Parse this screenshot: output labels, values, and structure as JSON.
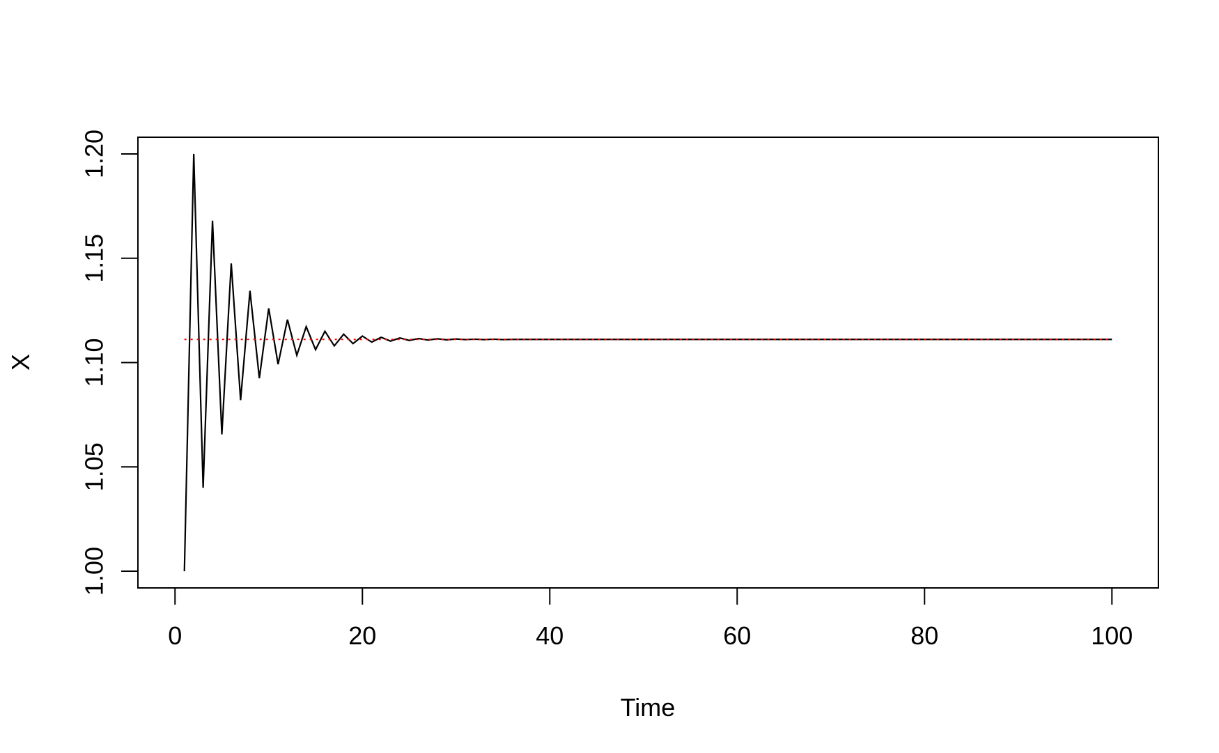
{
  "chart_data": {
    "type": "line",
    "title": "",
    "xlabel": "Time",
    "ylabel": "X",
    "xlim": [
      -3.96,
      104.96
    ],
    "ylim": [
      0.992,
      1.208
    ],
    "xticks": [
      0,
      20,
      40,
      60,
      80,
      100
    ],
    "yticks": [
      1.0,
      1.05,
      1.1,
      1.15,
      1.2
    ],
    "xtick_labels": [
      "0",
      "20",
      "40",
      "60",
      "80",
      "100"
    ],
    "ytick_labels": [
      "1.00",
      "1.05",
      "1.10",
      "1.15",
      "1.20"
    ],
    "grid": false,
    "series": [
      {
        "style": "solid",
        "color": "#000000",
        "x": [
          1,
          2,
          3,
          4,
          5,
          6,
          7,
          8,
          9,
          10,
          11,
          12,
          13,
          14,
          15,
          16,
          17,
          18,
          19,
          20,
          21,
          22,
          23,
          24,
          25,
          26,
          27,
          28,
          29,
          30,
          31,
          32,
          33,
          34,
          35,
          36,
          37,
          38,
          39,
          40,
          41,
          42,
          43,
          44,
          45,
          46,
          47,
          48,
          49,
          50,
          51,
          52,
          53,
          54,
          55,
          56,
          57,
          58,
          59,
          60,
          61,
          62,
          63,
          64,
          65,
          66,
          67,
          68,
          69,
          70,
          71,
          72,
          73,
          74,
          75,
          76,
          77,
          78,
          79,
          80,
          81,
          82,
          83,
          84,
          85,
          86,
          87,
          88,
          89,
          90,
          91,
          92,
          93,
          94,
          95,
          96,
          97,
          98,
          99,
          100
        ],
        "y": [
          1.0,
          1.2,
          1.04,
          1.168,
          1.0656,
          1.1475,
          1.082,
          1.1344,
          1.0925,
          1.126,
          1.0992,
          1.1206,
          1.1035,
          1.1172,
          1.1062,
          1.115,
          1.108,
          1.1136,
          1.1091,
          1.1127,
          1.1098,
          1.1121,
          1.1103,
          1.1118,
          1.1106,
          1.1115,
          1.1108,
          1.1114,
          1.1109,
          1.1113,
          1.111,
          1.1112,
          1.111,
          1.1112,
          1.111,
          1.1111,
          1.1111,
          1.1111,
          1.1111,
          1.1111,
          1.1111,
          1.1111,
          1.1111,
          1.1111,
          1.1111,
          1.1111,
          1.1111,
          1.1111,
          1.1111,
          1.1111,
          1.1111,
          1.1111,
          1.1111,
          1.1111,
          1.1111,
          1.1111,
          1.1111,
          1.1111,
          1.1111,
          1.1111,
          1.1111,
          1.1111,
          1.1111,
          1.1111,
          1.1111,
          1.1111,
          1.1111,
          1.1111,
          1.1111,
          1.1111,
          1.1111,
          1.1111,
          1.1111,
          1.1111,
          1.1111,
          1.1111,
          1.1111,
          1.1111,
          1.1111,
          1.1111,
          1.1111,
          1.1111,
          1.1111,
          1.1111,
          1.1111,
          1.1111,
          1.1111,
          1.1111,
          1.1111,
          1.1111,
          1.1111,
          1.1111,
          1.1111,
          1.1111,
          1.1111,
          1.1111,
          1.1111,
          1.1111,
          1.1111,
          1.1111
        ]
      },
      {
        "style": "dotted",
        "color": "#ff0000",
        "x": [
          1,
          100
        ],
        "y": [
          1.1111,
          1.1111
        ]
      }
    ]
  }
}
